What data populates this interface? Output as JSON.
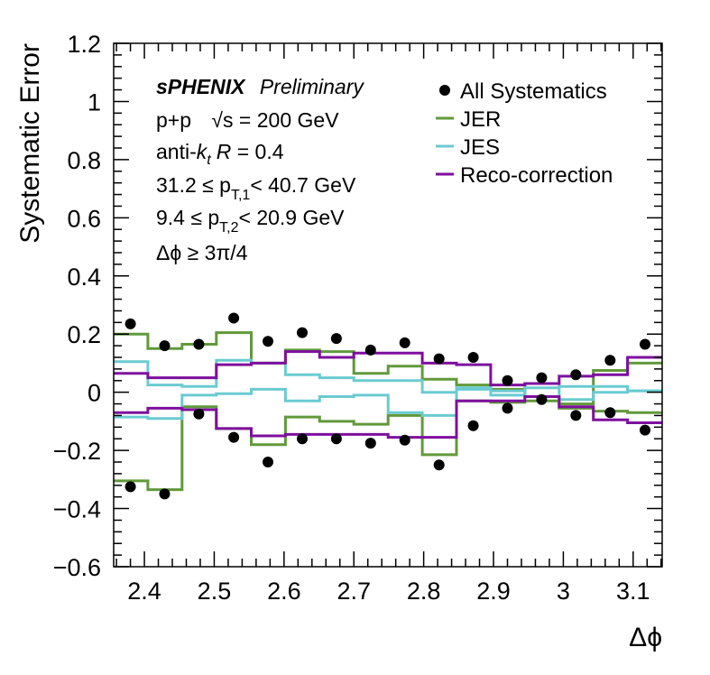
{
  "chart_data": {
    "type": "line",
    "xlabel": "Δϕ",
    "ylabel": "Systematic Error",
    "xlim": [
      2.356,
      3.1416
    ],
    "ylim": [
      -0.6,
      1.2
    ],
    "x_ticks": [
      2.4,
      2.5,
      2.6,
      2.7,
      2.8,
      2.9,
      3,
      3.1
    ],
    "x_tick_labels": [
      "2.4",
      "2.5",
      "2.6",
      "2.7",
      "2.8",
      "2.9",
      "3",
      "3.1"
    ],
    "y_ticks": [
      -0.6,
      -0.4,
      -0.2,
      0,
      0.2,
      0.4,
      0.6,
      0.8,
      1,
      1.2
    ],
    "y_tick_labels": [
      "−0.6",
      "−0.4",
      "−0.2",
      "0",
      "0.2",
      "0.4",
      "0.6",
      "0.8",
      "1",
      "1.2"
    ],
    "grid": false,
    "legend_position": "top-right",
    "annotations": {
      "experiment": "sPHENIX",
      "status": "Preliminary",
      "collision": "p+p",
      "energy": "√s = 200 GeV",
      "algo_prefix": "anti-",
      "algo_k": "k",
      "algo_sub": "t",
      "algo_R": "R",
      "algo_value": " = 0.4",
      "pt1_pre": "31.2 ≤ p",
      "pt1_sub": "T,1",
      "pt1_post": "< 40.7 GeV",
      "pt2_pre": "9.4 ≤ p",
      "pt2_sub": "T,2",
      "pt2_post": "< 20.9 GeV",
      "dphi_cut": "Δϕ  ≥ 3π/4"
    },
    "bin_edges": [
      2.356,
      2.405,
      2.454,
      2.503,
      2.553,
      2.602,
      2.651,
      2.7,
      2.749,
      2.798,
      2.847,
      2.896,
      2.945,
      2.994,
      3.043,
      3.092,
      3.142
    ],
    "points": {
      "name": "All Systematics",
      "marker_color": "#000000",
      "x": [
        2.38,
        2.429,
        2.478,
        2.528,
        2.577,
        2.626,
        2.675,
        2.724,
        2.773,
        2.822,
        2.871,
        2.92,
        2.969,
        3.018,
        3.067,
        3.117
      ],
      "up": [
        0.235,
        0.16,
        0.165,
        0.255,
        0.175,
        0.205,
        0.185,
        0.145,
        0.17,
        0.115,
        0.12,
        0.04,
        0.05,
        0.06,
        0.11,
        0.165
      ],
      "down": [
        -0.325,
        -0.35,
        -0.075,
        -0.155,
        -0.24,
        -0.16,
        -0.16,
        -0.175,
        -0.165,
        -0.25,
        -0.115,
        -0.055,
        -0.025,
        -0.08,
        -0.07,
        -0.13
      ]
    },
    "series": [
      {
        "name": "JER",
        "color": "#61993b",
        "up": [
          0.2,
          0.15,
          0.165,
          0.205,
          0.1,
          0.145,
          0.14,
          0.065,
          0.09,
          0.045,
          0.025,
          0.01,
          -0.015,
          -0.04,
          0.075,
          0.1
        ],
        "down": [
          -0.305,
          -0.335,
          -0.05,
          -0.125,
          -0.18,
          -0.085,
          -0.1,
          -0.11,
          -0.08,
          -0.215,
          -0.03,
          -0.035,
          -0.03,
          -0.055,
          -0.065,
          -0.07
        ]
      },
      {
        "name": "JES",
        "color": "#6acbd1",
        "up": [
          0.105,
          0.025,
          0.02,
          0.11,
          0.1,
          0.06,
          0.05,
          0.04,
          0.04,
          0.0,
          0.015,
          0.005,
          0.015,
          0.02,
          0.02,
          0.005
        ],
        "down": [
          -0.085,
          -0.09,
          -0.01,
          -0.005,
          0.01,
          -0.03,
          -0.015,
          -0.01,
          -0.07,
          -0.08,
          0.01,
          -0.01,
          0.03,
          -0.025,
          0.0,
          0.005
        ]
      },
      {
        "name": "Reco-correction",
        "color": "#7e0f9e",
        "up": [
          0.065,
          0.05,
          0.05,
          0.095,
          0.1,
          0.14,
          0.12,
          0.135,
          0.135,
          0.1,
          0.095,
          0.025,
          0.03,
          0.055,
          0.06,
          0.12
        ],
        "down": [
          -0.07,
          -0.055,
          -0.06,
          -0.125,
          -0.15,
          -0.145,
          -0.145,
          -0.145,
          -0.155,
          -0.155,
          -0.03,
          -0.03,
          -0.015,
          -0.05,
          -0.095,
          -0.105
        ]
      }
    ]
  }
}
